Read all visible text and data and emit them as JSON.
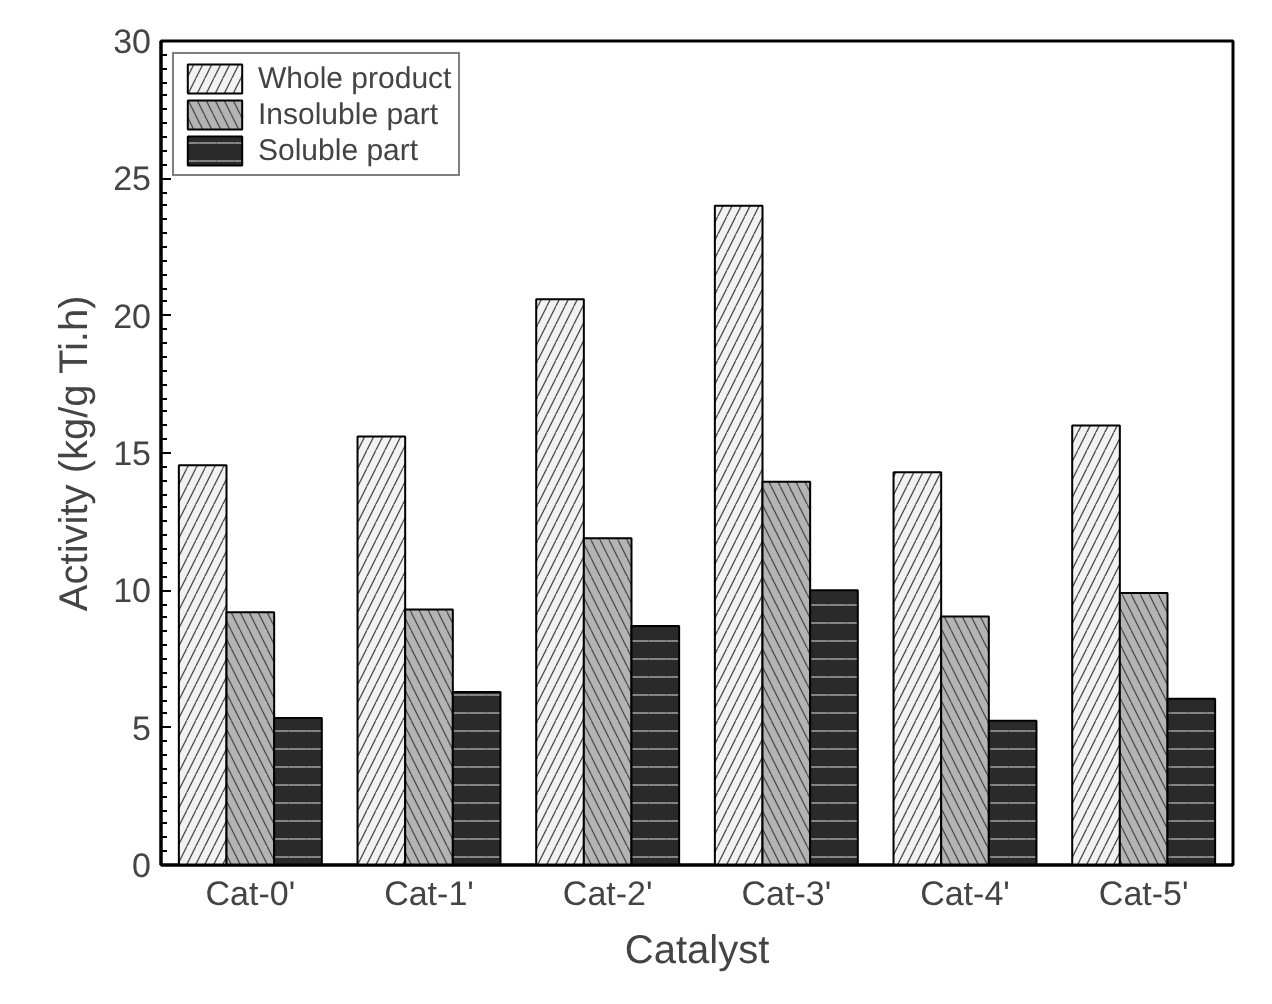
{
  "chart_data": {
    "type": "bar",
    "xlabel": "Catalyst",
    "ylabel": "Activity (kg/g Ti.h)",
    "categories": [
      "Cat-0'",
      "Cat-1'",
      "Cat-2'",
      "Cat-3'",
      "Cat-4'",
      "Cat-5'"
    ],
    "series": [
      {
        "name": "Whole product",
        "color": "#f2f2f2",
        "values": [
          14.55,
          15.6,
          20.6,
          24.0,
          14.3,
          16.0
        ]
      },
      {
        "name": "Insoluble part",
        "color": "#b4b4b4",
        "values": [
          9.2,
          9.3,
          11.9,
          13.95,
          9.05,
          9.9
        ]
      },
      {
        "name": "Soluble part",
        "color": "#2a2a2a",
        "values": [
          5.35,
          6.3,
          8.7,
          10.0,
          5.25,
          6.05
        ]
      }
    ],
    "ylim": [
      0,
      30
    ],
    "yticks": [
      0,
      5,
      10,
      15,
      20,
      25,
      30
    ],
    "grid": false,
    "legend": "top left"
  }
}
